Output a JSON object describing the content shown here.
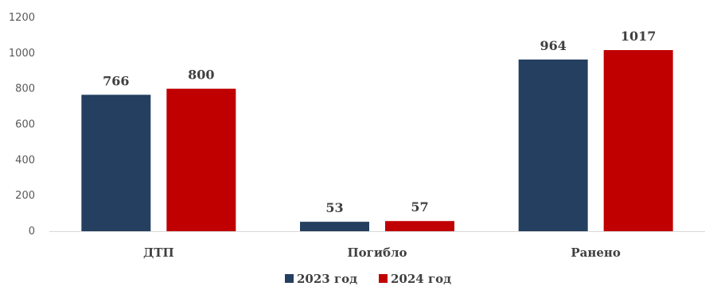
{
  "chart_data": {
    "type": "bar",
    "categories": [
      "ДТП",
      "Погибло",
      "Ранено"
    ],
    "series": [
      {
        "name": "2023 год",
        "color": "#243F60",
        "values": [
          766,
          53,
          964
        ]
      },
      {
        "name": "2024 год",
        "color": "#C00000",
        "values": [
          800,
          57,
          1017
        ]
      }
    ],
    "ylim": [
      0,
      1200
    ],
    "yticks": [
      0,
      200,
      400,
      600,
      800,
      1000,
      1200
    ],
    "grid": false,
    "legend": "bottom",
    "data_labels": true
  }
}
